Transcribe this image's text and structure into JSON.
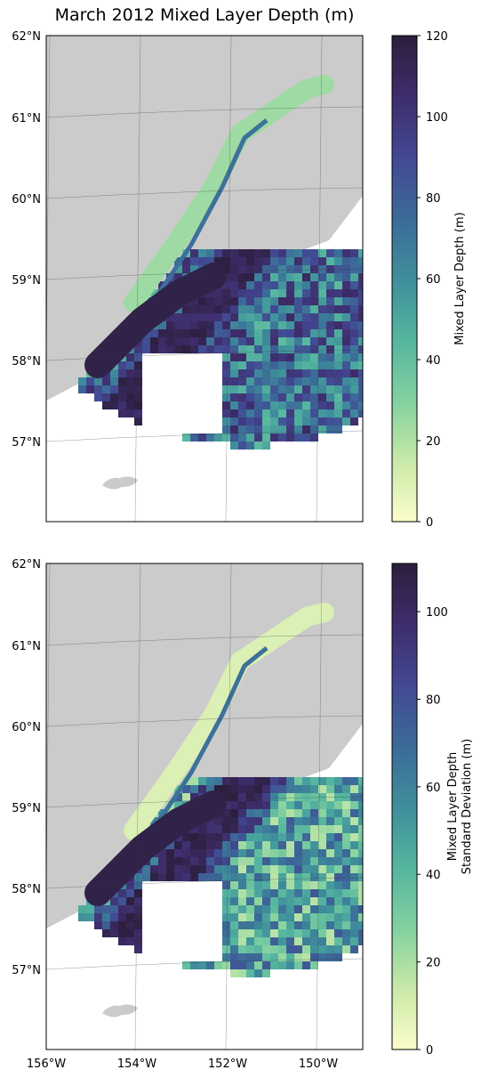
{
  "title": "March 2012 Mixed Layer Depth (m)",
  "colors": {
    "land": "#cbcbcb",
    "coast_detail": "#e6e6e6",
    "cmap": [
      "#fdfdc9",
      "#c8e9a8",
      "#82d0a0",
      "#55b59f",
      "#3e8e9b",
      "#3c6a98",
      "#424893",
      "#3e2d6b",
      "#2c1e3d"
    ]
  },
  "maps": [
    {
      "lat_ticks": [
        "62°N",
        "61°N",
        "60°N",
        "59°N",
        "58°N",
        "57°N"
      ],
      "colorbar": {
        "label_lines": [
          "Mixed Layer Depth (m)"
        ],
        "ticks": [
          "0",
          "20",
          "40",
          "60",
          "80",
          "100",
          "120"
        ],
        "min": 0,
        "max": 120
      }
    },
    {
      "lat_ticks": [
        "62°N",
        "61°N",
        "60°N",
        "59°N",
        "58°N",
        "57°N"
      ],
      "colorbar": {
        "label_lines": [
          "Mixed Layer Depth",
          "Standard Deviation (m)"
        ],
        "ticks": [
          "0",
          "20",
          "40",
          "60",
          "80",
          "100"
        ],
        "min": 0,
        "max": 111
      }
    }
  ],
  "lon_ticks": [
    "156°W",
    "154°W",
    "152°W",
    "150°W"
  ]
}
